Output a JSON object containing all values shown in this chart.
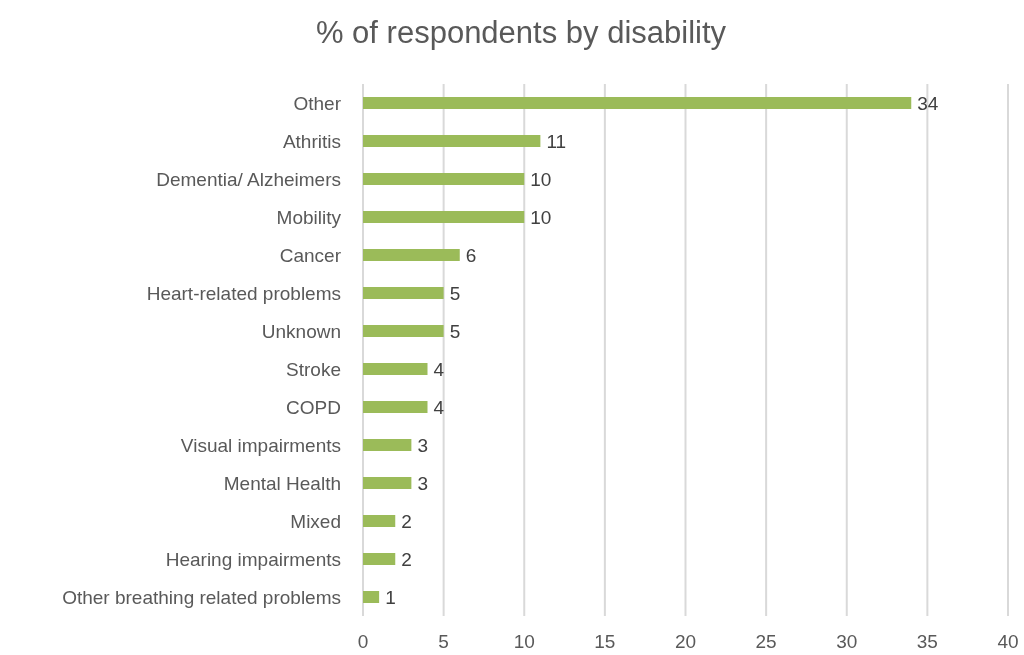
{
  "chart_data": {
    "type": "bar",
    "orientation": "horizontal",
    "title": "% of respondents by disability",
    "categories": [
      "Other",
      "Athritis",
      "Dementia/ Alzheimers",
      "Mobility",
      "Cancer",
      "Heart-related problems",
      "Unknown",
      "Stroke",
      "COPD",
      "Visual impairments",
      "Mental Health",
      "Mixed",
      "Hearing impairments",
      "Other breathing related problems"
    ],
    "values": [
      34,
      11,
      10,
      10,
      6,
      5,
      5,
      4,
      4,
      3,
      3,
      2,
      2,
      1
    ],
    "color": "#9bbb59",
    "xlim": [
      0,
      40
    ],
    "xticks": [
      0,
      5,
      10,
      15,
      20,
      25,
      30,
      35,
      40
    ],
    "grid": "x",
    "data_labels": true
  }
}
